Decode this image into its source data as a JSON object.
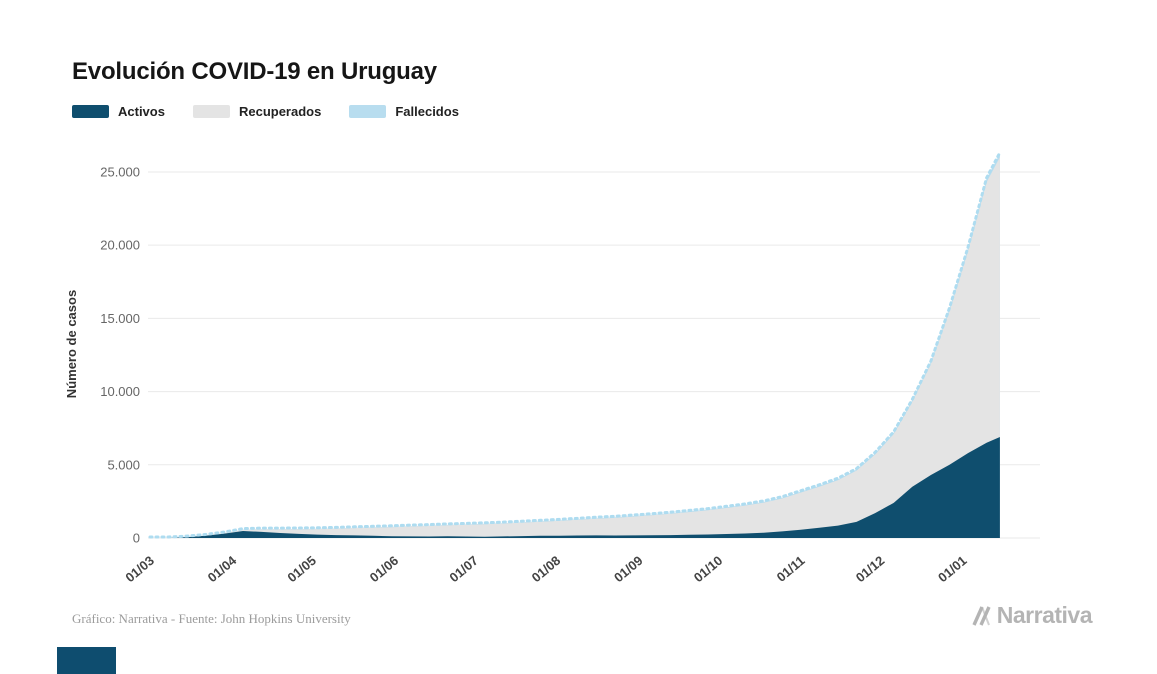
{
  "header": {
    "title": "Evolución COVID-19 en Uruguay"
  },
  "legend": {
    "items": [
      {
        "label": "Activos",
        "color": "#0f4e6e"
      },
      {
        "label": "Recuperados",
        "color": "#e4e4e4"
      },
      {
        "label": "Fallecidos",
        "color": "#b8ddef"
      }
    ]
  },
  "footer": {
    "credit": "Gráfico: Narrativa - Fuente: John Hopkins University",
    "brand": "Narrativa"
  },
  "chart_data": {
    "type": "area",
    "stacked": true,
    "title": "Evolución COVID-19 en Uruguay",
    "xlabel": "",
    "ylabel": "Número de casos",
    "ylim": [
      0,
      26500
    ],
    "grid": true,
    "legend_position": "top-left",
    "yticks": [
      0,
      5000,
      10000,
      15000,
      20000,
      25000
    ],
    "ytick_labels": [
      "0",
      "5.000",
      "10.000",
      "15.000",
      "20.000",
      "25.000"
    ],
    "xtick_labels": [
      "01/03",
      "01/04",
      "01/05",
      "01/06",
      "01/07",
      "01/08",
      "01/09",
      "01/10",
      "01/11",
      "01/12",
      "01/01"
    ],
    "x": [
      "01/03",
      "08/03",
      "15/03",
      "22/03",
      "29/03",
      "05/04",
      "12/04",
      "19/04",
      "26/04",
      "03/05",
      "10/05",
      "17/05",
      "24/05",
      "31/05",
      "07/06",
      "14/06",
      "21/06",
      "28/06",
      "05/07",
      "12/07",
      "19/07",
      "26/07",
      "02/08",
      "09/08",
      "16/08",
      "23/08",
      "30/08",
      "06/09",
      "13/09",
      "20/09",
      "27/09",
      "04/10",
      "11/10",
      "18/10",
      "25/10",
      "01/11",
      "08/11",
      "15/11",
      "22/11",
      "29/11",
      "06/12",
      "13/12",
      "20/12",
      "27/12",
      "03/01",
      "10/01",
      "15/01"
    ],
    "series": [
      {
        "name": "Activos",
        "color": "#0f4e6e",
        "values": [
          0,
          0,
          60,
          160,
          300,
          480,
          420,
          340,
          280,
          230,
          200,
          180,
          150,
          120,
          110,
          100,
          120,
          100,
          90,
          110,
          130,
          150,
          160,
          170,
          180,
          170,
          180,
          190,
          200,
          220,
          240,
          270,
          310,
          360,
          450,
          570,
          700,
          850,
          1100,
          1700,
          2400,
          3500,
          4300,
          5000,
          5800,
          6500,
          6900
        ]
      },
      {
        "name": "Recuperados",
        "color": "#e4e4e4",
        "values": [
          0,
          0,
          2,
          15,
          40,
          90,
          180,
          260,
          320,
          380,
          440,
          500,
          560,
          620,
          680,
          720,
          750,
          800,
          850,
          880,
          920,
          960,
          1010,
          1070,
          1130,
          1200,
          1280,
          1360,
          1450,
          1550,
          1650,
          1780,
          1900,
          2050,
          2250,
          2530,
          2800,
          3100,
          3500,
          4000,
          4700,
          5800,
          7600,
          10500,
          13800,
          17800,
          19100
        ]
      },
      {
        "name": "Fallecidos",
        "color": "#b8ddef",
        "values": [
          0,
          0,
          0,
          0,
          1,
          5,
          7,
          10,
          12,
          17,
          18,
          20,
          21,
          22,
          23,
          24,
          25,
          27,
          28,
          30,
          31,
          33,
          35,
          37,
          39,
          41,
          43,
          44,
          45,
          46,
          47,
          49,
          51,
          53,
          55,
          61,
          64,
          68,
          72,
          77,
          87,
          100,
          120,
          145,
          190,
          230,
          260
        ]
      }
    ]
  }
}
